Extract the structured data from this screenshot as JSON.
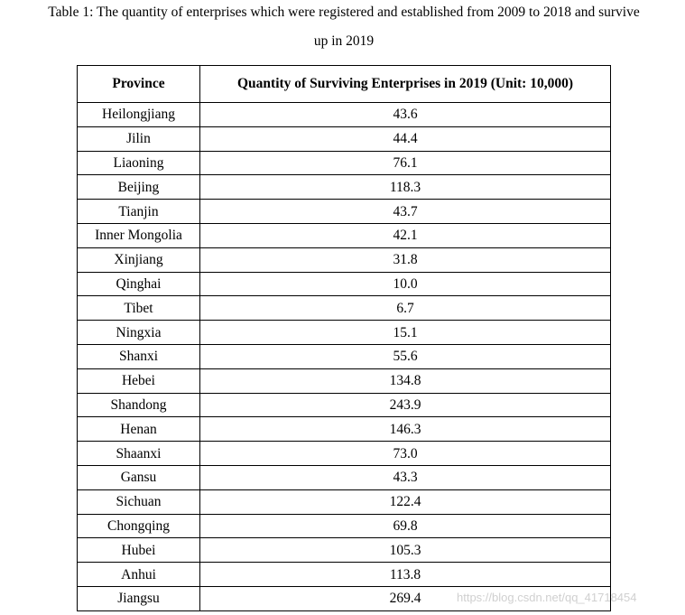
{
  "caption": {
    "line1": "Table 1: The quantity of enterprises which were registered and established from 2009 to 2018 and survive",
    "line2": "up in 2019"
  },
  "table": {
    "headers": [
      "Province",
      "Quantity of Surviving Enterprises in 2019 (Unit: 10,000)"
    ],
    "rows": [
      [
        "Heilongjiang",
        "43.6"
      ],
      [
        "Jilin",
        "44.4"
      ],
      [
        "Liaoning",
        "76.1"
      ],
      [
        "Beijing",
        "118.3"
      ],
      [
        "Tianjin",
        "43.7"
      ],
      [
        "Inner Mongolia",
        "42.1"
      ],
      [
        "Xinjiang",
        "31.8"
      ],
      [
        "Qinghai",
        "10.0"
      ],
      [
        "Tibet",
        "6.7"
      ],
      [
        "Ningxia",
        "15.1"
      ],
      [
        "Shanxi",
        "55.6"
      ],
      [
        "Hebei",
        "134.8"
      ],
      [
        "Shandong",
        "243.9"
      ],
      [
        "Henan",
        "146.3"
      ],
      [
        "Shaanxi",
        "73.0"
      ],
      [
        "Gansu",
        "43.3"
      ],
      [
        "Sichuan",
        "122.4"
      ],
      [
        "Chongqing",
        "69.8"
      ],
      [
        "Hubei",
        "105.3"
      ],
      [
        "Anhui",
        "113.8"
      ],
      [
        "Jiangsu",
        "269.4"
      ]
    ]
  },
  "watermark": "https://blog.csdn.net/qq_41718454"
}
